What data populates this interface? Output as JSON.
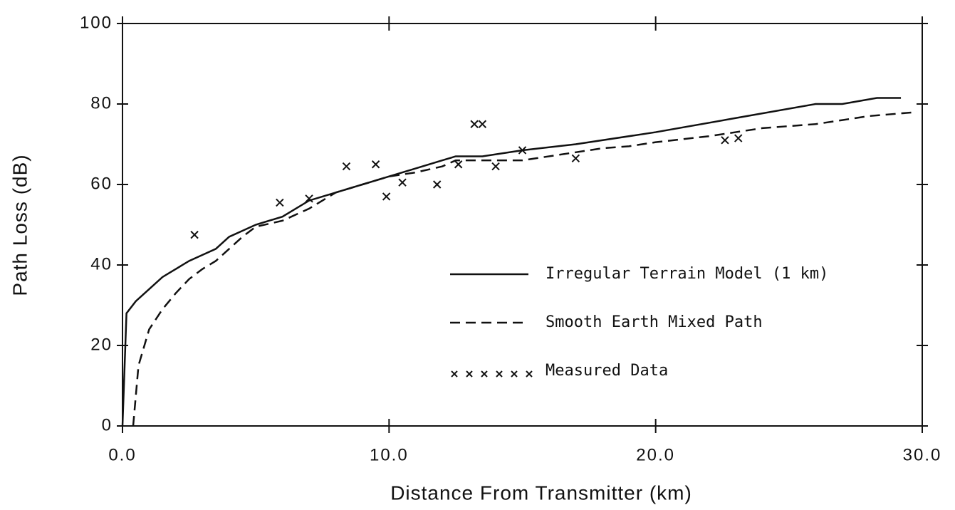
{
  "chart_data": {
    "type": "line",
    "xlabel": "Distance From Transmitter (km)",
    "ylabel": "Path Loss (dB)",
    "xlim": [
      0,
      30
    ],
    "ylim": [
      0,
      100
    ],
    "xticks": [
      {
        "value": 0,
        "label": "0.0"
      },
      {
        "value": 10,
        "label": "10.0"
      },
      {
        "value": 20,
        "label": "20.0"
      },
      {
        "value": 30,
        "label": "30.0"
      }
    ],
    "yticks": [
      0,
      20,
      40,
      60,
      80,
      100
    ],
    "legend": "right",
    "series": [
      {
        "name": "Irregular Terrain Model (1 km)",
        "style": "solid",
        "color": "#111111",
        "x": [
          0,
          0.15,
          0.5,
          1,
          1.5,
          2,
          2.5,
          3,
          3.5,
          4,
          4.5,
          5,
          6,
          7,
          8,
          9,
          10,
          11,
          12,
          12.5,
          13.5,
          15,
          17,
          20,
          23,
          26,
          27,
          28.3,
          29.2
        ],
        "values": [
          0,
          28,
          31,
          34,
          37,
          39,
          41,
          42.5,
          44,
          47,
          48.5,
          50,
          52,
          56,
          58,
          60,
          62,
          64,
          66,
          67,
          67,
          68.5,
          70,
          73,
          76.5,
          80,
          80,
          81.5,
          81.5
        ]
      },
      {
        "name": "Smooth Earth Mixed Path",
        "style": "dashed",
        "color": "#111111",
        "x": [
          0.4,
          0.6,
          1,
          1.5,
          2,
          2.5,
          3,
          3.5,
          4,
          4.5,
          5,
          6,
          7,
          8,
          9,
          10,
          11,
          12,
          12.5,
          15,
          17,
          18,
          19,
          20,
          22,
          23,
          24,
          26,
          27,
          28,
          29.8
        ],
        "values": [
          0,
          15,
          24,
          29,
          33,
          36.5,
          39,
          41,
          44,
          47,
          49.5,
          51,
          54,
          58,
          60,
          62,
          63,
          64.5,
          66,
          66,
          68,
          69,
          69.5,
          70.5,
          72,
          73,
          74,
          75,
          76,
          77,
          78
        ]
      },
      {
        "name": "Measured Data",
        "style": "marker",
        "color": "#111111",
        "x": [
          2.7,
          5.9,
          7.0,
          8.4,
          9.5,
          9.9,
          10.5,
          11.8,
          12.6,
          13.2,
          13.5,
          14.0,
          15.0,
          17.0,
          22.6,
          23.1
        ],
        "values": [
          47.5,
          55.5,
          56.5,
          64.5,
          65,
          57,
          60.5,
          60,
          65,
          75,
          75,
          64.5,
          68.5,
          66.5,
          71,
          71.5
        ]
      }
    ]
  }
}
